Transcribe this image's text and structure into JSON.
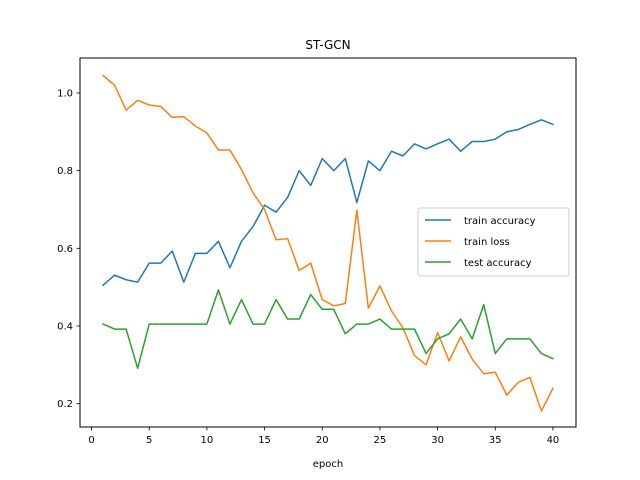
{
  "chart_data": {
    "type": "line",
    "title": "ST-GCN",
    "xlabel": "epoch",
    "ylabel": "",
    "xlim": [
      -1,
      42
    ],
    "ylim": [
      0.14,
      1.09
    ],
    "xticks": [
      0,
      5,
      10,
      15,
      20,
      25,
      30,
      35,
      40
    ],
    "yticks": [
      0.2,
      0.4,
      0.6,
      0.8,
      1.0
    ],
    "ytick_labels": [
      "0.2",
      "0.4",
      "0.6",
      "0.8",
      "1.0"
    ],
    "grid": false,
    "legend_position": "center-right",
    "x": [
      1,
      2,
      3,
      4,
      5,
      6,
      7,
      8,
      9,
      10,
      11,
      12,
      13,
      14,
      15,
      16,
      17,
      18,
      19,
      20,
      21,
      22,
      23,
      24,
      25,
      26,
      27,
      28,
      29,
      30,
      31,
      32,
      33,
      34,
      35,
      36,
      37,
      38,
      39,
      40
    ],
    "series": [
      {
        "name": "train accuracy",
        "color": "#1f77b4",
        "values": [
          0.505,
          0.531,
          0.519,
          0.513,
          0.562,
          0.562,
          0.593,
          0.513,
          0.587,
          0.587,
          0.618,
          0.55,
          0.618,
          0.656,
          0.711,
          0.693,
          0.731,
          0.8,
          0.762,
          0.831,
          0.8,
          0.831,
          0.718,
          0.825,
          0.8,
          0.85,
          0.838,
          0.869,
          0.856,
          0.869,
          0.881,
          0.85,
          0.875,
          0.875,
          0.881,
          0.9,
          0.906,
          0.919,
          0.931,
          0.919
        ]
      },
      {
        "name": "train loss",
        "color": "#ff7f0e",
        "values": [
          1.045,
          1.02,
          0.956,
          0.981,
          0.969,
          0.965,
          0.937,
          0.939,
          0.915,
          0.897,
          0.853,
          0.853,
          0.803,
          0.743,
          0.7,
          0.622,
          0.625,
          0.543,
          0.562,
          0.468,
          0.452,
          0.458,
          0.698,
          0.446,
          0.503,
          0.439,
          0.395,
          0.324,
          0.3,
          0.383,
          0.31,
          0.372,
          0.315,
          0.277,
          0.281,
          0.222,
          0.255,
          0.268,
          0.181,
          0.24
        ]
      },
      {
        "name": "test accuracy",
        "color": "#2ca02c",
        "values": [
          0.405,
          0.392,
          0.392,
          0.291,
          0.405,
          0.405,
          0.405,
          0.405,
          0.405,
          0.405,
          0.493,
          0.405,
          0.468,
          0.405,
          0.405,
          0.468,
          0.418,
          0.418,
          0.481,
          0.443,
          0.443,
          0.38,
          0.405,
          0.405,
          0.418,
          0.392,
          0.392,
          0.392,
          0.329,
          0.367,
          0.38,
          0.418,
          0.367,
          0.455,
          0.329,
          0.367,
          0.367,
          0.367,
          0.329,
          0.316
        ]
      }
    ]
  }
}
